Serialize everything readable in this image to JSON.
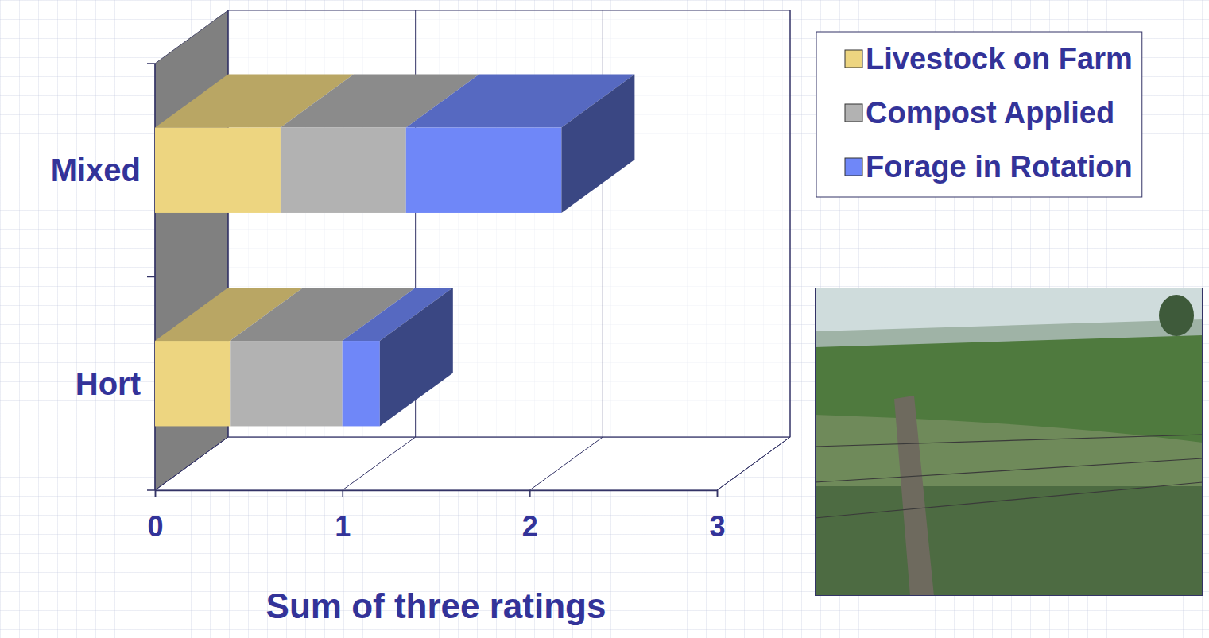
{
  "chart_data": {
    "type": "bar",
    "orientation": "horizontal",
    "stacked": true,
    "categories": [
      "Mixed",
      "Hort"
    ],
    "series": [
      {
        "name": "Livestock on Farm",
        "color": "#EDD580",
        "values": [
          0.67,
          0.4
        ]
      },
      {
        "name": "Compost Applied",
        "color": "#B2B2B2",
        "values": [
          0.67,
          0.6
        ]
      },
      {
        "name": "Forage in Rotation",
        "color": "#6F87F8",
        "values": [
          0.83,
          0.2
        ]
      }
    ],
    "xlim": [
      0,
      3
    ],
    "xticks": [
      0,
      1,
      2,
      3
    ],
    "xlabel": "Sum of three ratings",
    "grid": true,
    "legend": "right"
  }
}
